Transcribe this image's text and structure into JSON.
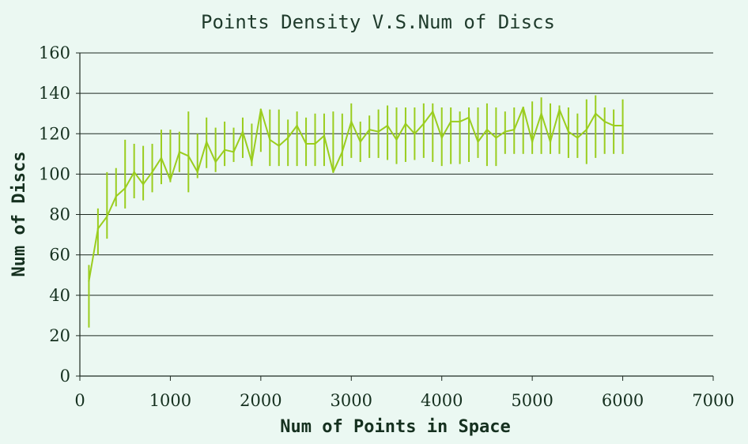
{
  "chart_data": {
    "type": "line",
    "title": "Points Density V.S.Num of Discs",
    "xlabel": "Num of Points in Space",
    "ylabel": "Num of Discs",
    "xlim": [
      0,
      7000
    ],
    "ylim": [
      0,
      160
    ],
    "xticks": [
      "0",
      "1000",
      "2000",
      "3000",
      "4000",
      "5000",
      "6000",
      "7000"
    ],
    "yticks": [
      "0",
      "20",
      "40",
      "60",
      "80",
      "100",
      "120",
      "140",
      "160"
    ],
    "grid": "horizontal",
    "legend": "none",
    "colors": {
      "series": "#9acd1e",
      "grid": "#1e2a22",
      "axis": "#1e2a22",
      "background": "#ebf8f2"
    },
    "series": [
      {
        "x": [
          100,
          200,
          300,
          400,
          500,
          600,
          700,
          800,
          900,
          1000,
          1100,
          1200,
          1300,
          1400,
          1500,
          1600,
          1700,
          1800,
          1900,
          2000,
          2100,
          2200,
          2300,
          2400,
          2500,
          2600,
          2700,
          2800,
          2900,
          3000,
          3100,
          3200,
          3300,
          3400,
          3500,
          3600,
          3700,
          3800,
          3900,
          4000,
          4100,
          4200,
          4300,
          4400,
          4500,
          4600,
          4700,
          4800,
          4900,
          5000,
          5100,
          5200,
          5300,
          5400,
          5500,
          5600,
          5700,
          5800,
          5900,
          6000
        ],
        "y": [
          47,
          73,
          79,
          89,
          93,
          101,
          95,
          101,
          108,
          97,
          111,
          109,
          101,
          116,
          106,
          112,
          111,
          121,
          106,
          132,
          117,
          114,
          118,
          124,
          115,
          115,
          119,
          101,
          111,
          126,
          116,
          122,
          121,
          124,
          117,
          125,
          120,
          125,
          131,
          118,
          126,
          126,
          128,
          116,
          122,
          118,
          121,
          122,
          133,
          116,
          130,
          116,
          132,
          121,
          118,
          122,
          130,
          126,
          124,
          124
        ],
        "error_low": [
          24,
          60,
          68,
          84,
          83,
          88,
          87,
          91,
          95,
          96,
          101,
          91,
          98,
          103,
          101,
          104,
          106,
          108,
          104,
          111,
          104,
          104,
          104,
          104,
          104,
          104,
          104,
          102,
          104,
          108,
          106,
          108,
          108,
          107,
          105,
          106,
          107,
          108,
          106,
          104,
          105,
          105,
          106,
          108,
          104,
          104,
          110,
          110,
          110,
          110,
          110,
          110,
          110,
          108,
          108,
          105,
          108,
          110,
          110,
          110
        ],
        "error_high": [
          55,
          83,
          101,
          103,
          117,
          115,
          114,
          115,
          122,
          122,
          121,
          131,
          120,
          128,
          123,
          126,
          123,
          128,
          125,
          131,
          132,
          132,
          127,
          131,
          128,
          130,
          130,
          131,
          130,
          135,
          126,
          129,
          132,
          134,
          133,
          133,
          133,
          135,
          135,
          133,
          133,
          131,
          133,
          133,
          135,
          133,
          131,
          133,
          133,
          136,
          138,
          135,
          134,
          133,
          130,
          137,
          139,
          133,
          132,
          137
        ]
      }
    ]
  }
}
